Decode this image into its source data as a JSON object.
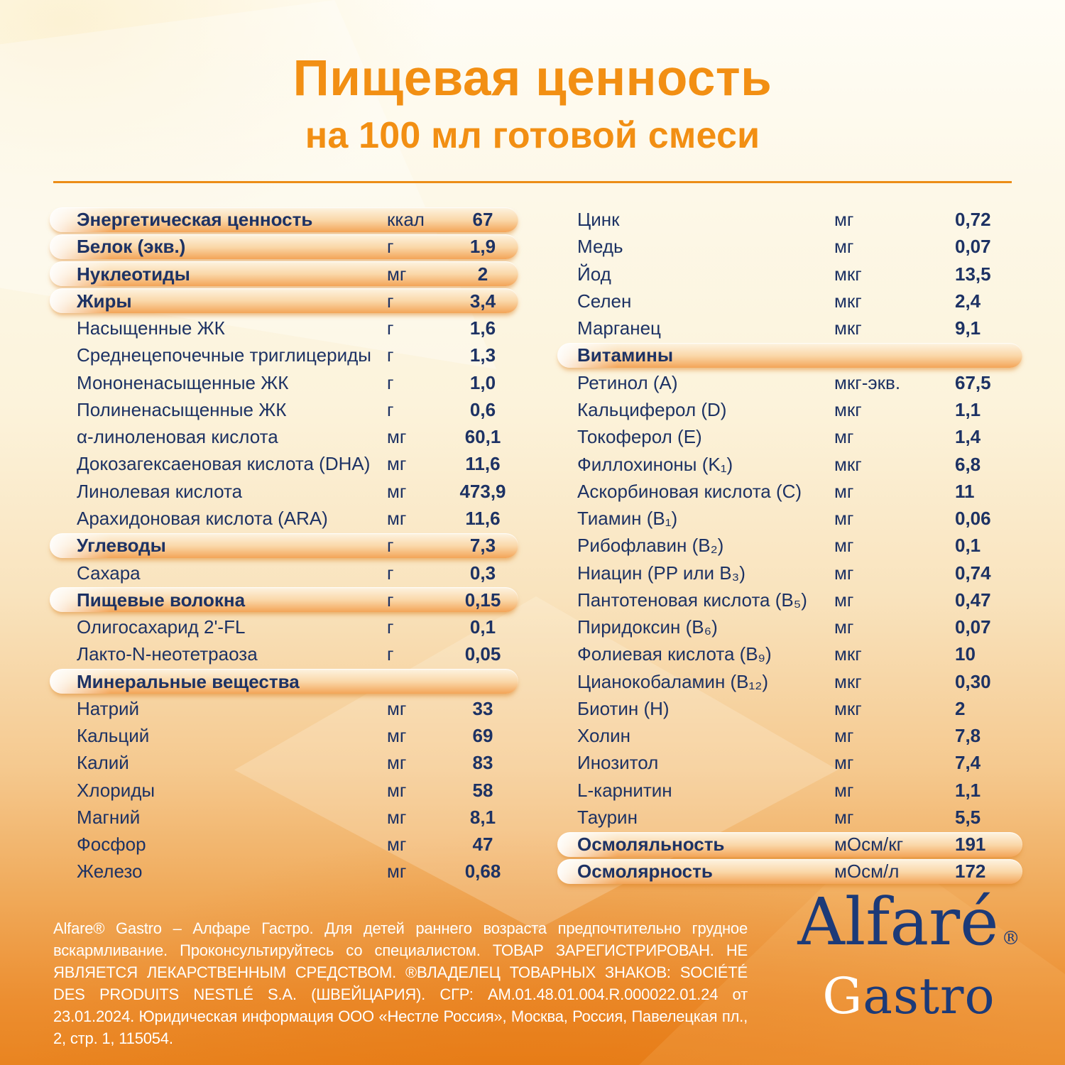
{
  "title": {
    "main": "Пищевая ценность",
    "subtitle": "на 100 мл готовой смеси"
  },
  "table": {
    "left": [
      {
        "header": true,
        "name": "Энергетическая ценность",
        "unit": "ккал",
        "value": "67"
      },
      {
        "header": true,
        "name": "Белок (экв.)",
        "unit": "г",
        "value": "1,9"
      },
      {
        "header": true,
        "name": "Нуклеотиды",
        "unit": "мг",
        "value": "2"
      },
      {
        "header": true,
        "name": "Жиры",
        "unit": "г",
        "value": "3,4"
      },
      {
        "header": false,
        "name": "Насыщенные ЖК",
        "unit": "г",
        "value": "1,6"
      },
      {
        "header": false,
        "name": "Среднецепочечные триглицериды",
        "unit": "г",
        "value": "1,3"
      },
      {
        "header": false,
        "name": "Мононенасыщенные ЖК",
        "unit": "г",
        "value": "1,0"
      },
      {
        "header": false,
        "name": "Полиненасыщенные ЖК",
        "unit": "г",
        "value": "0,6"
      },
      {
        "header": false,
        "name": "α-линоленовая кислота",
        "unit": "мг",
        "value": "60,1"
      },
      {
        "header": false,
        "name": "Докозагексаеновая кислота (DHA)",
        "unit": "мг",
        "value": "11,6"
      },
      {
        "header": false,
        "name": "Линолевая кислота",
        "unit": "мг",
        "value": "473,9"
      },
      {
        "header": false,
        "name": "Арахидоновая кислота (ARA)",
        "unit": "мг",
        "value": "11,6"
      },
      {
        "header": true,
        "name": "Углеводы",
        "unit": "г",
        "value": "7,3"
      },
      {
        "header": false,
        "name": "Сахара",
        "unit": "г",
        "value": "0,3"
      },
      {
        "header": true,
        "name": "Пищевые волокна",
        "unit": "г",
        "value": "0,15"
      },
      {
        "header": false,
        "name": "Олигосахарид 2'-FL",
        "unit": "г",
        "value": "0,1"
      },
      {
        "header": false,
        "name": "Лакто-N-неотетраоза",
        "unit": "г",
        "value": "0,05"
      },
      {
        "header": true,
        "name": "Минеральные вещества",
        "unit": "",
        "value": ""
      },
      {
        "header": false,
        "name": "Натрий",
        "unit": "мг",
        "value": "33"
      },
      {
        "header": false,
        "name": "Кальций",
        "unit": "мг",
        "value": "69"
      },
      {
        "header": false,
        "name": "Калий",
        "unit": "мг",
        "value": "83"
      },
      {
        "header": false,
        "name": "Хлориды",
        "unit": "мг",
        "value": "58"
      },
      {
        "header": false,
        "name": "Магний",
        "unit": "мг",
        "value": "8,1"
      },
      {
        "header": false,
        "name": "Фосфор",
        "unit": "мг",
        "value": "47"
      },
      {
        "header": false,
        "name": "Железо",
        "unit": "мг",
        "value": "0,68"
      }
    ],
    "right": [
      {
        "header": false,
        "name": "Цинк",
        "unit": "мг",
        "value": "0,72"
      },
      {
        "header": false,
        "name": "Медь",
        "unit": "мг",
        "value": "0,07"
      },
      {
        "header": false,
        "name": "Йод",
        "unit": "мкг",
        "value": "13,5"
      },
      {
        "header": false,
        "name": "Селен",
        "unit": "мкг",
        "value": "2,4"
      },
      {
        "header": false,
        "name": "Марганец",
        "unit": "мкг",
        "value": "9,1"
      },
      {
        "header": true,
        "name": "Витамины",
        "unit": "",
        "value": ""
      },
      {
        "header": false,
        "name": "Ретинол (A)",
        "unit": "мкг-экв.",
        "value": "67,5"
      },
      {
        "header": false,
        "name": "Кальциферол (D)",
        "unit": "мкг",
        "value": "1,1"
      },
      {
        "header": false,
        "name": "Токоферол (E)",
        "unit": "мг",
        "value": "1,4"
      },
      {
        "header": false,
        "name": "Филлохиноны (K₁)",
        "unit": "мкг",
        "value": "6,8"
      },
      {
        "header": false,
        "name": "Аскорбиновая кислота (C)",
        "unit": "мг",
        "value": "11"
      },
      {
        "header": false,
        "name": "Тиамин (B₁)",
        "unit": "мг",
        "value": "0,06"
      },
      {
        "header": false,
        "name": "Рибофлавин (B₂)",
        "unit": "мг",
        "value": "0,1"
      },
      {
        "header": false,
        "name": "Ниацин (PP или B₃)",
        "unit": "мг",
        "value": "0,74"
      },
      {
        "header": false,
        "name": "Пантотеновая кислота (B₅)",
        "unit": "мг",
        "value": "0,47"
      },
      {
        "header": false,
        "name": "Пиридоксин (B₆)",
        "unit": "мг",
        "value": "0,07"
      },
      {
        "header": false,
        "name": "Фолиевая кислота (B₉)",
        "unit": "мкг",
        "value": "10"
      },
      {
        "header": false,
        "name": "Цианокобаламин (B₁₂)",
        "unit": "мкг",
        "value": "0,30"
      },
      {
        "header": false,
        "name": "Биотин (H)",
        "unit": "мкг",
        "value": "2"
      },
      {
        "header": false,
        "name": "Холин",
        "unit": "мг",
        "value": "7,8"
      },
      {
        "header": false,
        "name": "Инозитол",
        "unit": "мг",
        "value": "7,4"
      },
      {
        "header": false,
        "name": "L-карнитин",
        "unit": "мг",
        "value": "1,1"
      },
      {
        "header": false,
        "name": "Таурин",
        "unit": "мг",
        "value": "5,5"
      },
      {
        "header": true,
        "name": "Осмоляльность",
        "unit": "мОсм/кг",
        "value": "191"
      },
      {
        "header": true,
        "name": "Осмолярность",
        "unit": "мОсм/л",
        "value": "172"
      }
    ]
  },
  "footer": {
    "text": "Alfare® Gastro – Алфаре Гастро. Для детей раннего возраста предпочтительно грудное вскармливание. Проконсультируйтесь со специалистом. ТОВАР ЗАРЕГИСТРИРОВАН. НЕ ЯВЛЯЕТСЯ ЛЕКАРСТВЕННЫМ СРЕДСТВОМ. ®ВЛАДЕЛЕЦ ТОВАРНЫХ ЗНАКОВ: SOCIÉTÉ DES PRODUITS NESTLÉ S.A. (ШВЕЙЦАРИЯ). СГР: AM.01.48.01.004.R.000022.01.24 от 23.01.2024. Юридическая информация ООО «Нестле Россия», Москва, Россия, Павелецкая пл., 2, стр. 1, 115054."
  },
  "logo": {
    "brand": "Alfaré",
    "reg": "®",
    "sub_first": "G",
    "sub_rest": "astro"
  },
  "colors": {
    "title_orange": "#F28F13",
    "text_navy": "#1D3264",
    "pill_orange": "#F3A458",
    "divider_orange": "#EC8D17",
    "background_bottom_orange": "#E98420",
    "footer_text": "#FFFFFF",
    "logo_navy": "#1C3A78"
  }
}
